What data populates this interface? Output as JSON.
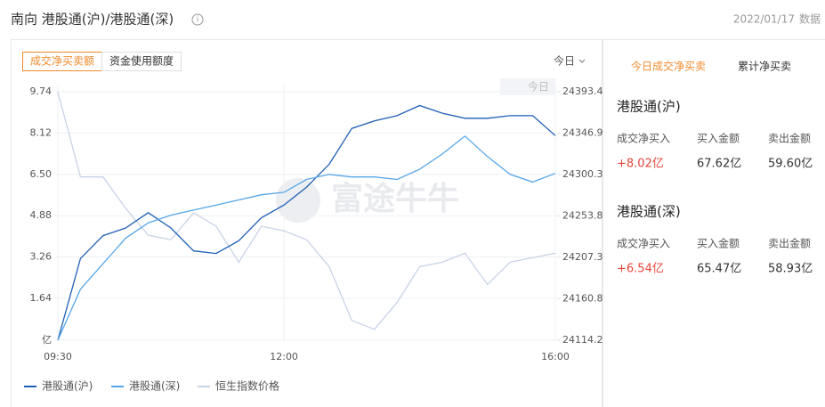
{
  "header": {
    "title": "南向 港股通(沪)/港股通(深)",
    "date": "2022/01/17",
    "date_suffix": "数据"
  },
  "tabs": [
    "成交净买卖额",
    "资金使用额度"
  ],
  "period_select": "今日",
  "chart_data": {
    "type": "line",
    "watermark": "富途牛牛",
    "period_label": "今日",
    "categories": [
      "09:30",
      null,
      null,
      null,
      null,
      null,
      null,
      null,
      null,
      null,
      "12:00",
      null,
      null,
      null,
      null,
      null,
      null,
      null,
      null,
      null,
      null,
      null,
      "16:00"
    ],
    "series": [
      {
        "name": "港股通(沪)",
        "color": "#1f5fb5",
        "values": [
          0,
          3.2,
          4.1,
          4.4,
          5.0,
          4.4,
          3.5,
          3.4,
          3.9,
          4.8,
          5.3,
          6.0,
          6.9,
          8.3,
          8.6,
          8.8,
          9.2,
          8.9,
          8.7,
          8.7,
          8.8,
          8.8,
          8.02
        ]
      },
      {
        "name": "港股通(深)",
        "color": "#56a6e8",
        "values": [
          0,
          2.0,
          3.0,
          4.0,
          4.6,
          4.9,
          5.1,
          5.3,
          5.5,
          5.7,
          5.8,
          6.3,
          6.5,
          6.4,
          6.4,
          6.3,
          6.7,
          7.3,
          8.0,
          7.2,
          6.5,
          6.2,
          6.54
        ]
      },
      {
        "name": "恒生指数价格",
        "color": "#c9d3e6",
        "axis": "y2",
        "values": [
          24393.4,
          24297.6,
          24297.6,
          24262.4,
          24232.1,
          24227.1,
          24257.3,
          24242.2,
          24201.9,
          24242.2,
          24237.2,
          24227.1,
          24196.8,
          24136.4,
          24126.4,
          24156.5,
          24196.8,
          24201.9,
          24212.0,
          24176.7,
          24201.9,
          24206.9,
          24212.0
        ]
      }
    ],
    "ylim": [
      0,
      9.74
    ],
    "yticks": [
      {
        "value": 0,
        "label": "亿"
      },
      1.64,
      3.26,
      4.88,
      {
        "value": 6.5,
        "label": "6.50"
      },
      8.12,
      9.74
    ],
    "y2lim": [
      24114.2,
      24393.4
    ],
    "y2ticks": [
      24114.2,
      24160.8,
      24207.3,
      24253.8,
      24300.3,
      24346.9,
      24393.4
    ],
    "grid": true,
    "legend": "bottom-left"
  },
  "summary": {
    "tabs": [
      "今日成交净买卖",
      "累计净买卖"
    ],
    "markets": [
      {
        "name": "港股通(沪)",
        "columns": [
          "成交净买入",
          "买入金额",
          "卖出金额"
        ],
        "values": [
          "+8.02亿",
          "67.62亿",
          "59.60亿"
        ]
      },
      {
        "name": "港股通(深)",
        "columns": [
          "成交净买入",
          "买入金额",
          "卖出金额"
        ],
        "values": [
          "+6.54亿",
          "65.47亿",
          "58.93亿"
        ]
      }
    ]
  }
}
